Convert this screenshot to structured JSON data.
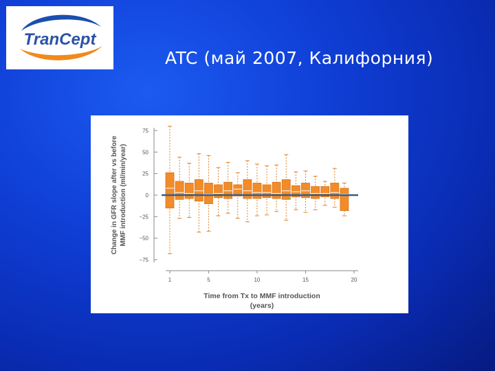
{
  "slide": {
    "title": "ATC (май 2007, Калифорния)",
    "logo": {
      "text_part1": "Tran",
      "text_part2": "Cept",
      "colors": {
        "text": "#2a52a8",
        "swoosh_blue": "#1a4fb0",
        "swoosh_orange": "#f08a1c"
      }
    }
  },
  "chart_data": {
    "type": "box",
    "title": "",
    "xlabel_lines": [
      "Time from Tx to MMF introduction",
      "(years)"
    ],
    "ylabel_lines": [
      "Change in GFR slope after vs before",
      "MMF introduction (ml/min/year)"
    ],
    "ylim": [
      -75,
      75
    ],
    "xlim": [
      1,
      20
    ],
    "yticks": [
      75,
      50,
      25,
      0,
      -25,
      -50,
      -75
    ],
    "ytick_labels": [
      "75",
      "50",
      "25",
      "0",
      "−25",
      "−50",
      "−75"
    ],
    "xticks": [
      1,
      5,
      10,
      15,
      20
    ],
    "xtick_labels": [
      "1",
      "5",
      "10",
      "15",
      "20"
    ],
    "reference_line_y": 0,
    "colors": {
      "box": "#f28c28",
      "box_edge": "#d9741a",
      "whisker": "#e07f1f",
      "reference": "#2f5f8f",
      "text": "#555555"
    },
    "boxes": [
      {
        "x": 1,
        "min": -68,
        "q1": -15,
        "median": 8,
        "q3": 26,
        "max": 80
      },
      {
        "x": 2,
        "min": -27,
        "q1": -5,
        "median": 3,
        "q3": 16,
        "max": 44
      },
      {
        "x": 3,
        "min": -26,
        "q1": -4,
        "median": 2,
        "q3": 14,
        "max": 37
      },
      {
        "x": 4,
        "min": -43,
        "q1": -7,
        "median": 5,
        "q3": 18,
        "max": 48
      },
      {
        "x": 5,
        "min": -42,
        "q1": -10,
        "median": 1,
        "q3": 14,
        "max": 46
      },
      {
        "x": 6,
        "min": -24,
        "q1": -3,
        "median": 2,
        "q3": 12,
        "max": 32
      },
      {
        "x": 7,
        "min": -21,
        "q1": -4,
        "median": 5,
        "q3": 15,
        "max": 38
      },
      {
        "x": 8,
        "min": -27,
        "q1": -1,
        "median": 7,
        "q3": 12,
        "max": 26
      },
      {
        "x": 9,
        "min": -31,
        "q1": -4,
        "median": 5,
        "q3": 18,
        "max": 40
      },
      {
        "x": 10,
        "min": -24,
        "q1": -4,
        "median": 3,
        "q3": 14,
        "max": 36
      },
      {
        "x": 11,
        "min": -23,
        "q1": -3,
        "median": 3,
        "q3": 12,
        "max": 34
      },
      {
        "x": 12,
        "min": -19,
        "q1": -4,
        "median": 2,
        "q3": 15,
        "max": 35
      },
      {
        "x": 13,
        "min": -29,
        "q1": -5,
        "median": 5,
        "q3": 18,
        "max": 47
      },
      {
        "x": 14,
        "min": -17,
        "q1": -2,
        "median": 4,
        "q3": 11,
        "max": 27
      },
      {
        "x": 15,
        "min": -20,
        "q1": -3,
        "median": 5,
        "q3": 14,
        "max": 28
      },
      {
        "x": 16,
        "min": -17,
        "q1": -4,
        "median": 2,
        "q3": 10,
        "max": 22
      },
      {
        "x": 17,
        "min": -12,
        "q1": -2,
        "median": 2,
        "q3": 10,
        "max": 16
      },
      {
        "x": 18,
        "min": -14,
        "q1": -4,
        "median": 3,
        "q3": 14,
        "max": 31
      },
      {
        "x": 19,
        "min": -24,
        "q1": -18,
        "median": 1,
        "q3": 8,
        "max": 14
      }
    ]
  }
}
